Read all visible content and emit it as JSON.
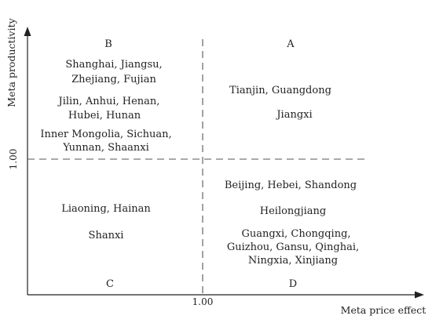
{
  "axes": {
    "x_label": "Meta price effect",
    "y_label": "Meta productivity",
    "x_threshold_label": "1.00",
    "y_threshold_label": "1.00"
  },
  "quadrants": {
    "A": {
      "letter": "A",
      "lines": [
        "Tianjin, Guangdong",
        "Jiangxi"
      ]
    },
    "B": {
      "letter": "B",
      "lines": [
        "Shanghai, Jiangsu,",
        "Zhejiang, Fujian",
        "Jilin, Anhui, Henan,",
        "Hubei, Hunan",
        "Inner Mongolia, Sichuan,",
        "Yunnan, Shaanxi"
      ]
    },
    "C": {
      "letter": "C",
      "lines": [
        "Liaoning, Hainan",
        "Shanxi"
      ]
    },
    "D": {
      "letter": "D",
      "lines": [
        "Beijing, Hebei, Shandong",
        "Heilongjiang",
        "Guangxi, Chongqing,",
        "Guizhou, Gansu, Qinghai,",
        "Ningxia, Xinjiang"
      ]
    }
  }
}
